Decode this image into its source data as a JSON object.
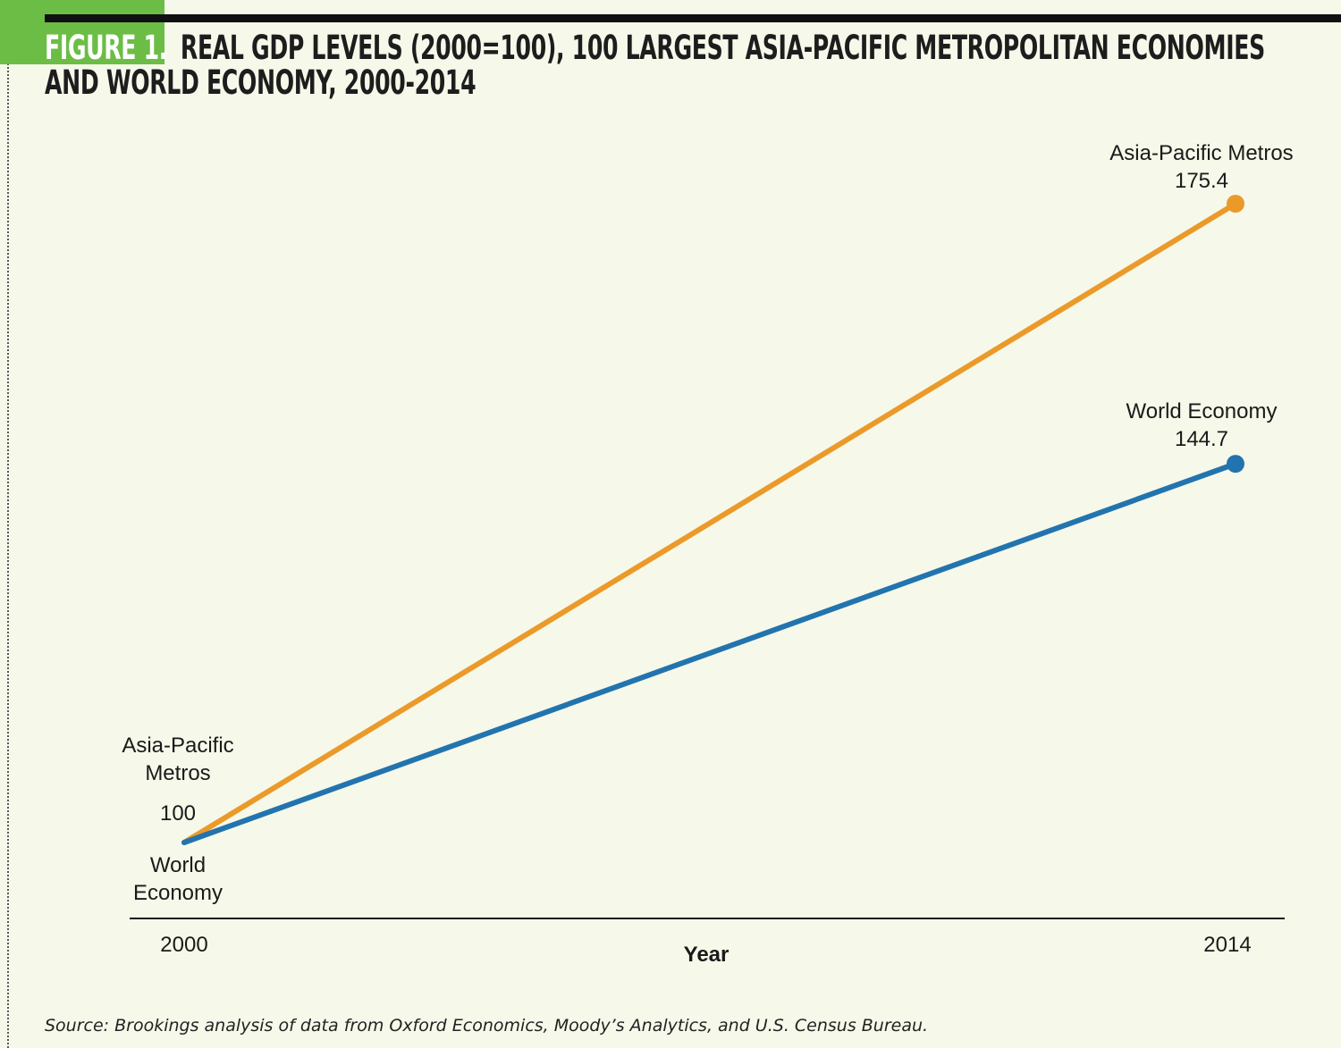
{
  "header": {
    "figure_label": "FIGURE 1.",
    "title": "REAL GDP LEVELS (2000=100), 100 LARGEST ASIA-PACIFIC METROPOLITAN ECONOMIES AND WORLD ECONOMY, 2000-2014"
  },
  "colors": {
    "background": "#f6f8ea",
    "accent_green": "#6cbd45",
    "asia_pacific": "#eb9a2a",
    "world": "#2274ae"
  },
  "chart_data": {
    "type": "line",
    "title": "REAL GDP LEVELS (2000=100), 100 LARGEST ASIA-PACIFIC METROPOLITAN ECONOMIES AND WORLD ECONOMY, 2000-2014",
    "xlabel": "Year",
    "ylabel": "",
    "categories": [
      "2000",
      "2014"
    ],
    "ylim": [
      100,
      175.4
    ],
    "grid": false,
    "series": [
      {
        "name": "Asia-Pacific Metros",
        "values": [
          100,
          175.4
        ],
        "color": "#eb9a2a",
        "end_label_name": "Asia-Pacific Metros",
        "end_value_label": "175.4"
      },
      {
        "name": "World Economy",
        "values": [
          100,
          144.7
        ],
        "color": "#2274ae",
        "end_label_name": "World Economy",
        "end_value_label": "144.7"
      }
    ],
    "start_annotation": {
      "asia_line1": "Asia-Pacific",
      "asia_line2": "Metros",
      "value": "100",
      "world_line1": "World",
      "world_line2": "Economy"
    }
  },
  "source": "Source: Brookings analysis of data from Oxford Economics, Moody’s Analytics, and U.S. Census Bureau."
}
